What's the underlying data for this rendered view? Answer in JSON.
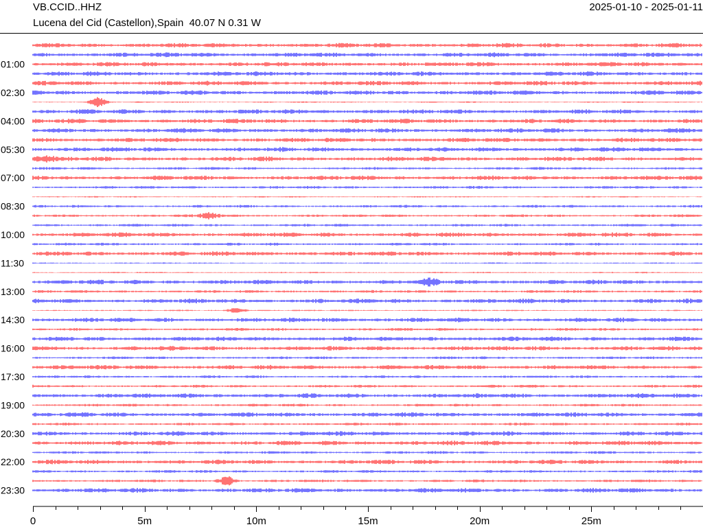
{
  "header": {
    "station": "VB.CCID..HHZ",
    "location": "Lucena del Cid (Castellon),Spain  40.07 N 0.31 W",
    "date_range": "2025-01-10 - 2025-01-11"
  },
  "colors": {
    "trace_a": "#ff0000",
    "trace_b": "#0000ff",
    "axis": "#000000",
    "background": "#ffffff"
  },
  "chart_data": {
    "type": "line",
    "description_type": "helicorder",
    "x_axis": {
      "range_minutes": [
        0,
        30
      ],
      "tick_labels": [
        {
          "value": 0,
          "label": "0"
        },
        {
          "value": 5,
          "label": "5m"
        },
        {
          "value": 10,
          "label": "10m"
        },
        {
          "value": 15,
          "label": "15m"
        },
        {
          "value": 20,
          "label": "20m"
        },
        {
          "value": 25,
          "label": "25m"
        }
      ],
      "minor_tick_step_minutes": 1
    },
    "row_interval_minutes": 30,
    "row_count": 48,
    "row_colors": [
      "red",
      "blue"
    ],
    "y_tick_labels": [
      {
        "row": 2,
        "label": "01:00"
      },
      {
        "row": 5,
        "label": "02:30"
      },
      {
        "row": 8,
        "label": "04:00"
      },
      {
        "row": 11,
        "label": "05:30"
      },
      {
        "row": 14,
        "label": "07:00"
      },
      {
        "row": 17,
        "label": "08:30"
      },
      {
        "row": 20,
        "label": "10:00"
      },
      {
        "row": 23,
        "label": "11:30"
      },
      {
        "row": 26,
        "label": "13:00"
      },
      {
        "row": 29,
        "label": "14:30"
      },
      {
        "row": 32,
        "label": "16:00"
      },
      {
        "row": 35,
        "label": "17:30"
      },
      {
        "row": 38,
        "label": "19:00"
      },
      {
        "row": 41,
        "label": "20:30"
      },
      {
        "row": 44,
        "label": "22:00"
      },
      {
        "row": 47,
        "label": "23:30"
      }
    ],
    "row_activity": [
      3,
      3,
      3,
      3,
      3,
      3,
      1,
      3,
      3,
      3,
      3,
      3,
      3,
      2,
      3,
      2,
      1,
      2,
      2,
      2,
      3,
      2,
      3,
      1,
      1,
      3,
      2,
      3,
      1,
      3,
      2,
      3,
      3,
      2,
      3,
      2,
      2,
      3,
      2,
      3,
      2,
      3,
      3,
      2,
      3,
      2,
      2,
      3
    ],
    "events": [
      {
        "row": 6,
        "minute": 2.9,
        "strength": 3
      },
      {
        "row": 12,
        "minute": 0.5,
        "strength": 2
      },
      {
        "row": 18,
        "minute": 7.9,
        "strength": 2
      },
      {
        "row": 25,
        "minute": 17.7,
        "strength": 2
      },
      {
        "row": 28,
        "minute": 9.1,
        "strength": 2
      },
      {
        "row": 46,
        "minute": 8.7,
        "strength": 3
      }
    ]
  }
}
